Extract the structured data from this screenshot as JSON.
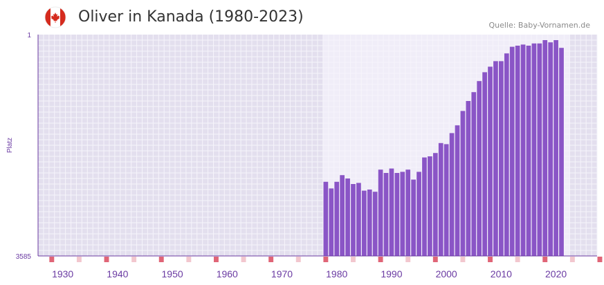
{
  "title": "Oliver in Kanada (1980-2023)",
  "source": "Quelle: Baby-Vornamen.de",
  "colors": {
    "bar": "#8a55c6",
    "plot_bg": "#e3dfee",
    "highlight_bg": "#f0edf8",
    "grid": "#f6f4fb",
    "axis": "#6a3aa2",
    "tick_label": "#6a3aa2",
    "marker_decade": "#e06577",
    "marker_minor": "#f2c7ce",
    "flag_red": "#d52b1e"
  },
  "chart_data": {
    "type": "bar",
    "title": "Oliver in Kanada (1980-2023)",
    "ylabel": "Platz",
    "xlabel": "",
    "y_axis": {
      "top_label": "1",
      "bottom_label": "3585",
      "inverted": true,
      "range": [
        1,
        3585
      ]
    },
    "x_range": [
      1926,
      2028
    ],
    "x_ticks": [
      1930,
      1940,
      1950,
      1960,
      1970,
      1980,
      1990,
      2000,
      2010,
      2020
    ],
    "highlight_range": [
      1978,
      2022
    ],
    "series": [
      {
        "name": "Oliver",
        "years": [
          1978,
          1979,
          1980,
          1981,
          1982,
          1983,
          1984,
          1985,
          1986,
          1987,
          1988,
          1989,
          1990,
          1991,
          1992,
          1993,
          1994,
          1995,
          1996,
          1997,
          1998,
          1999,
          2000,
          2001,
          2002,
          2003,
          2004,
          2005,
          2006,
          2007,
          2008,
          2009,
          2010,
          2011,
          2012,
          2013,
          2014,
          2015,
          2016,
          2017,
          2018,
          2019,
          2020,
          2021,
          2022
        ],
        "bar_height_fraction": [
          0.335,
          0.305,
          0.335,
          0.365,
          0.35,
          0.325,
          0.33,
          0.295,
          0.3,
          0.29,
          0.39,
          0.375,
          0.395,
          0.375,
          0.38,
          0.39,
          0.345,
          0.38,
          0.445,
          0.45,
          0.465,
          0.51,
          0.505,
          0.555,
          0.59,
          0.655,
          0.7,
          0.74,
          0.79,
          0.83,
          0.855,
          0.88,
          0.88,
          0.915,
          0.945,
          0.95,
          0.955,
          0.95,
          0.96,
          0.96,
          0.975,
          0.965,
          0.975,
          0.94,
          null
        ]
      }
    ]
  }
}
